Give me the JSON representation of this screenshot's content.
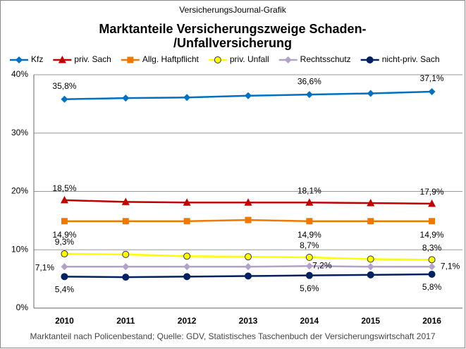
{
  "chart_data": {
    "type": "line",
    "header": "VersicherungsJournal-Grafik",
    "title": [
      "Marktanteile Versicherungszweige Schaden-",
      "/Unfallversicherung"
    ],
    "source": "Marktanteil nach Policenbestand; Quelle: GDV, Statistisches Taschenbuch der Versicherungswirtschaft 2017",
    "categories": [
      "2010",
      "2011",
      "2012",
      "2013",
      "2014",
      "2015",
      "2016"
    ],
    "ylim": [
      0,
      40
    ],
    "yticks": [
      {
        "value": 0,
        "label": "0%"
      },
      {
        "value": 10,
        "label": "10%"
      },
      {
        "value": 20,
        "label": "20%"
      },
      {
        "value": 30,
        "label": "30%"
      },
      {
        "value": 40,
        "label": "40%"
      }
    ],
    "grid": true,
    "legend": "top",
    "series": [
      {
        "name": "Kfz",
        "color": "#0070c0",
        "marker": "diamond",
        "values": [
          35.8,
          36.0,
          36.1,
          36.4,
          36.6,
          36.8,
          37.1
        ],
        "value_labels": [
          "35,8%",
          null,
          null,
          null,
          "36,6%",
          null,
          "37,1%"
        ]
      },
      {
        "name": "priv. Sach",
        "color": "#c00000",
        "marker": "triangle",
        "values": [
          18.5,
          18.2,
          18.1,
          18.1,
          18.1,
          18.0,
          17.9
        ],
        "value_labels": [
          "18,5%",
          null,
          null,
          null,
          "18,1%",
          null,
          "17,9%"
        ]
      },
      {
        "name": "Allg. Haftpflicht",
        "color": "#f07800",
        "marker": "square",
        "values": [
          14.9,
          14.9,
          14.9,
          15.1,
          14.9,
          14.9,
          14.9
        ],
        "value_labels": [
          "14,9%",
          null,
          null,
          null,
          "14,9%",
          null,
          "14,9%"
        ]
      },
      {
        "name": "priv. Unfall",
        "color": "#ffff00",
        "marker": "circle",
        "values": [
          9.3,
          9.2,
          8.9,
          8.8,
          8.7,
          8.4,
          8.3
        ],
        "value_labels": [
          "9,3%",
          null,
          null,
          null,
          "8,7%",
          null,
          "8,3%"
        ]
      },
      {
        "name": "Rechtsschutz",
        "color": "#b3a2c7",
        "marker": "diamond",
        "values": [
          7.1,
          7.1,
          7.1,
          7.1,
          7.2,
          7.1,
          7.1
        ],
        "value_labels": [
          "7,1%",
          null,
          null,
          null,
          "7,2%",
          null,
          "7,1%"
        ]
      },
      {
        "name": "nicht-priv. Sach",
        "color": "#002060",
        "marker": "circle",
        "values": [
          5.4,
          5.3,
          5.4,
          5.5,
          5.6,
          5.7,
          5.8
        ],
        "value_labels": [
          "5,4%",
          null,
          null,
          null,
          "5,6%",
          null,
          "5,8%"
        ]
      }
    ]
  }
}
